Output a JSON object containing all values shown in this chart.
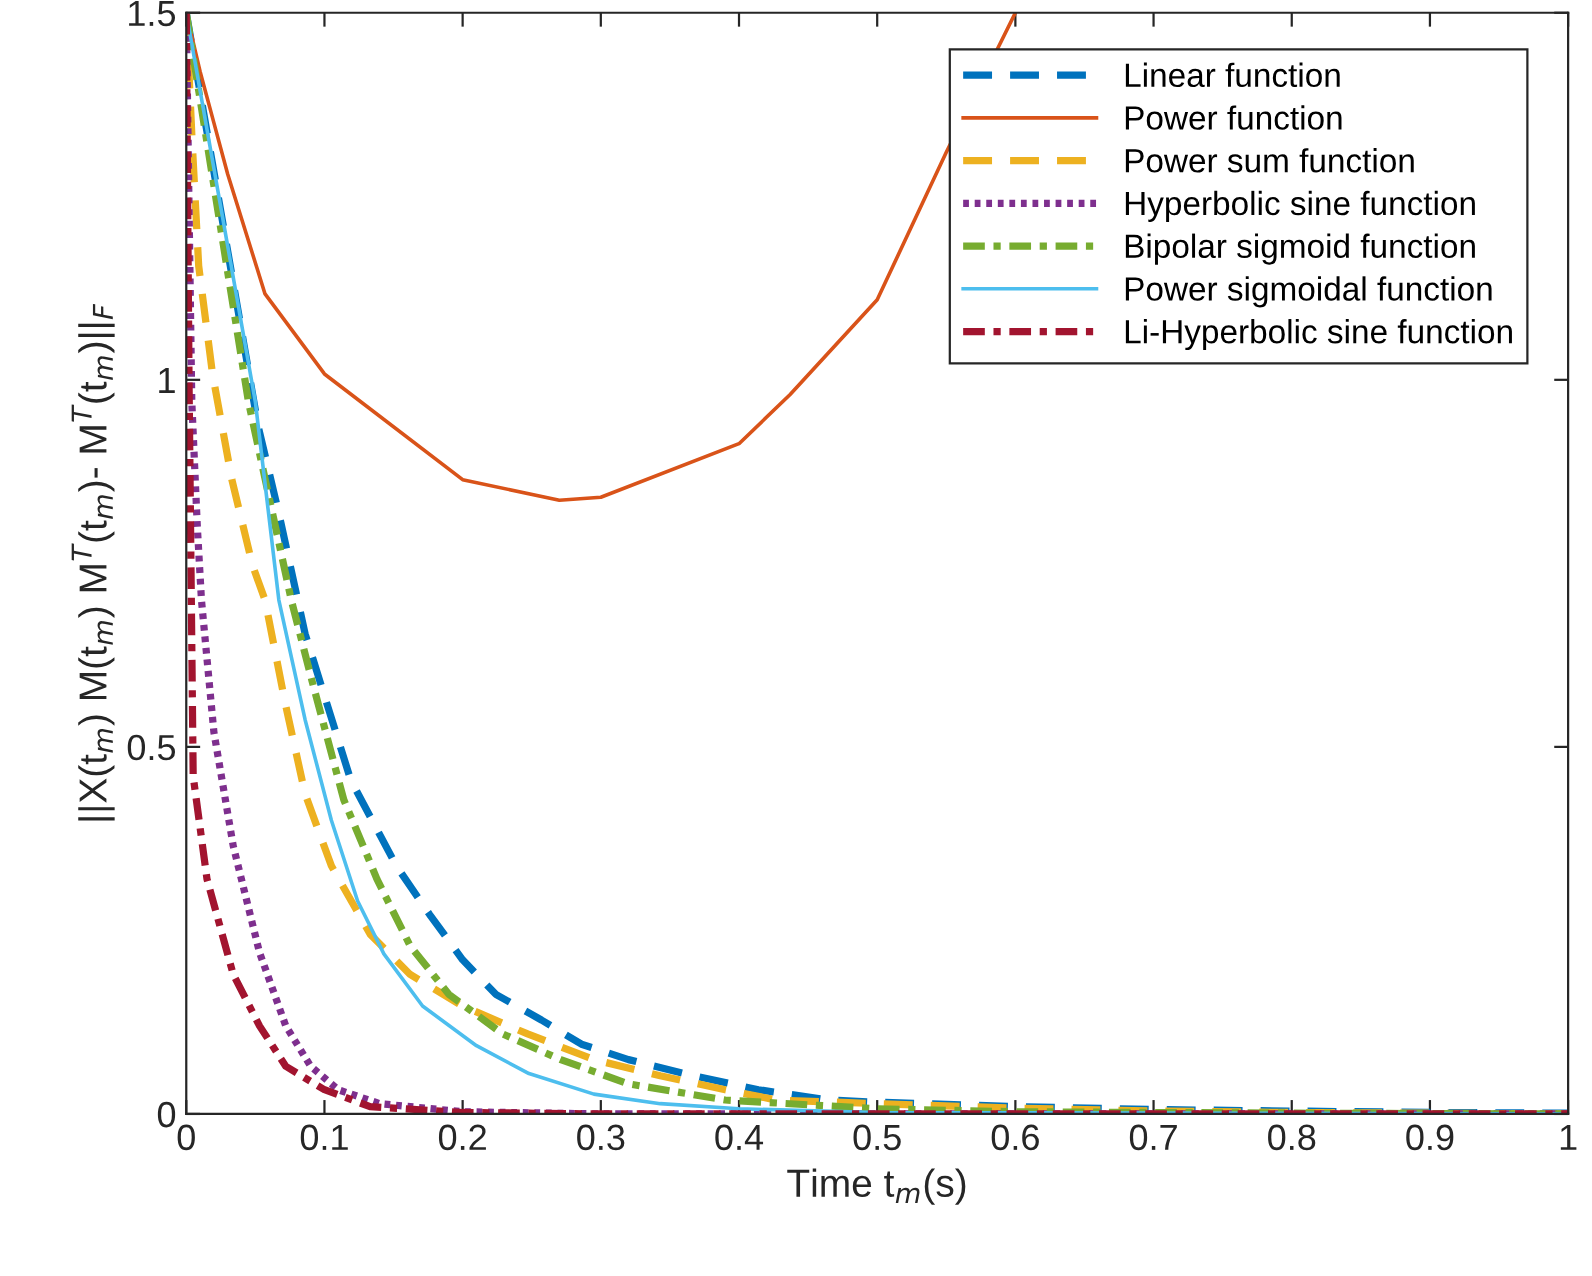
{
  "chart_data": {
    "type": "line",
    "xlabel": "Time t$_{m}$(s)",
    "ylabel": "||X(t$_{m}$) M(t$_{m}$) M$^{T}$(t$_{m}$)- M$^{T}$(t$_{m}$)||$_{F}$",
    "xlim": [
      0,
      1
    ],
    "ylim": [
      0,
      1.5
    ],
    "xticks": [
      0,
      0.1,
      0.2,
      0.3,
      0.4,
      0.5,
      0.6,
      0.7,
      0.8,
      0.9,
      1
    ],
    "yticks": [
      0,
      0.5,
      1,
      1.5
    ],
    "grid": false,
    "legend": "top right",
    "series": [
      {
        "name": "Linear function",
        "color": "#0072bd",
        "line_style": "dashed",
        "x": [
          0,
          0.052,
          0.067,
          0.086,
          0.119,
          0.152,
          0.176,
          0.2,
          0.224,
          0.257,
          0.286,
          0.32,
          0.367,
          0.414,
          0.465,
          0.5,
          0.6,
          0.7,
          0.8,
          0.9,
          1
        ],
        "values": [
          1.5,
          0.937,
          0.818,
          0.654,
          0.455,
          0.338,
          0.272,
          0.21,
          0.163,
          0.128,
          0.095,
          0.074,
          0.052,
          0.033,
          0.019,
          0.016,
          0.01,
          0.006,
          0.004,
          0.002,
          0.001
        ]
      },
      {
        "name": "Power function",
        "color": "#d95319",
        "line_style": "solid",
        "x": [
          0,
          0.01,
          0.02,
          0.03,
          0.057,
          0.1,
          0.2,
          0.27,
          0.3,
          0.4,
          0.437,
          0.5,
          0.55,
          0.6
        ],
        "values": [
          1.5,
          1.42,
          1.35,
          1.28,
          1.117,
          1.008,
          0.864,
          0.836,
          0.84,
          0.913,
          0.98,
          1.109,
          1.31,
          1.5
        ]
      },
      {
        "name": "Power sum function",
        "color": "#edb120",
        "line_style": "dashed",
        "x": [
          0,
          0.004,
          0.009,
          0.019,
          0.033,
          0.048,
          0.057,
          0.072,
          0.086,
          0.105,
          0.133,
          0.162,
          0.2,
          0.247,
          0.295,
          0.343,
          0.39,
          0.427,
          0.5,
          0.6,
          0.7,
          0.8,
          1
        ],
        "values": [
          1.5,
          1.335,
          1.155,
          1.008,
          0.864,
          0.747,
          0.7,
          0.556,
          0.436,
          0.338,
          0.245,
          0.19,
          0.147,
          0.109,
          0.074,
          0.052,
          0.033,
          0.019,
          0.014,
          0.008,
          0.004,
          0.002,
          0
        ]
      },
      {
        "name": "Hyperbolic sine function",
        "color": "#7e2f8e",
        "line_style": "dotted",
        "x": [
          0,
          0.004,
          0.008,
          0.011,
          0.02,
          0.034,
          0.053,
          0.072,
          0.09,
          0.11,
          0.14,
          0.2,
          0.3,
          1
        ],
        "values": [
          1.5,
          0.97,
          0.8,
          0.7,
          0.52,
          0.365,
          0.22,
          0.12,
          0.065,
          0.033,
          0.014,
          0.003,
          0,
          0
        ]
      },
      {
        "name": "Bipolar sigmoid function",
        "color": "#77ac30",
        "line_style": "dashdot",
        "x": [
          0,
          0.045,
          0.076,
          0.091,
          0.114,
          0.138,
          0.162,
          0.19,
          0.229,
          0.271,
          0.32,
          0.39,
          0.5,
          0.6,
          0.8,
          1
        ],
        "values": [
          1.5,
          0.97,
          0.7,
          0.59,
          0.428,
          0.32,
          0.229,
          0.163,
          0.109,
          0.074,
          0.041,
          0.019,
          0.007,
          0.003,
          0.001,
          0
        ]
      },
      {
        "name": "Power sigmoidal function",
        "color": "#4dbeee",
        "line_style": "solid",
        "x": [
          0,
          0.05,
          0.067,
          0.086,
          0.105,
          0.124,
          0.143,
          0.171,
          0.21,
          0.248,
          0.295,
          0.343,
          0.4,
          0.5,
          1
        ],
        "values": [
          1.5,
          0.97,
          0.7,
          0.537,
          0.4,
          0.29,
          0.218,
          0.147,
          0.093,
          0.055,
          0.027,
          0.014,
          0.007,
          0.002,
          0
        ]
      },
      {
        "name": "Li-Hyperbolic sine function",
        "color": "#a2142f",
        "line_style": "dashdot",
        "x": [
          0,
          0.002,
          0.005,
          0.015,
          0.034,
          0.053,
          0.072,
          0.1,
          0.133,
          0.2,
          0.3,
          1
        ],
        "values": [
          1.5,
          1.0,
          0.46,
          0.32,
          0.19,
          0.12,
          0.065,
          0.033,
          0.01,
          0.002,
          0,
          0
        ]
      }
    ]
  }
}
